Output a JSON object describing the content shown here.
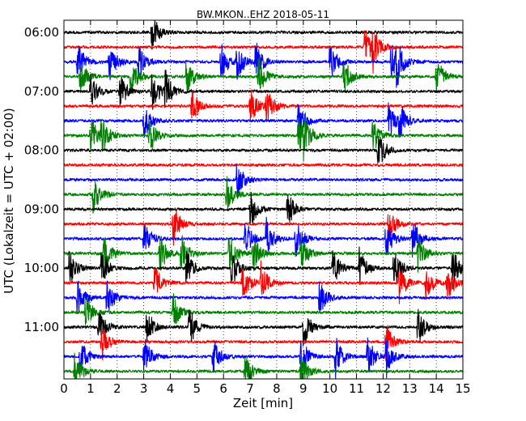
{
  "chart_data": {
    "type": "line",
    "title": "BW.MKON..EHZ 2018-05-11",
    "xlabel": "Zeit  [min]",
    "ylabel": "UTC (Lokalzeit = UTC + 02:00)",
    "xlim": [
      0,
      15
    ],
    "x_ticks": [
      "0",
      "1",
      "2",
      "3",
      "4",
      "5",
      "6",
      "7",
      "8",
      "9",
      "10",
      "11",
      "12",
      "13",
      "14",
      "15"
    ],
    "y_ticks": [
      "06:00",
      "07:00",
      "08:00",
      "09:00",
      "10:00",
      "11:00"
    ],
    "row_interval_min": 15,
    "start_time": "06:00",
    "grid": true,
    "trace_colors": [
      "#000000",
      "#ff0000",
      "#0000ff",
      "#008000"
    ],
    "series": [
      {
        "row": "06:00",
        "color": "black",
        "events_min": [
          3.3
        ]
      },
      {
        "row": "06:15",
        "color": "red",
        "events_min": [
          11.3,
          11.6
        ]
      },
      {
        "row": "06:30",
        "color": "blue",
        "events_min": [
          0.5,
          1.7,
          2.8,
          5.9,
          6.5,
          7.2,
          10.0,
          12.3,
          12.5
        ]
      },
      {
        "row": "06:45",
        "color": "green",
        "events_min": [
          0.6,
          2.5,
          4.6,
          7.3,
          10.5,
          14.0
        ]
      },
      {
        "row": "07:00",
        "color": "black",
        "events_min": [
          1.0,
          2.1,
          3.3,
          3.8
        ]
      },
      {
        "row": "07:15",
        "color": "red",
        "events_min": [
          4.8,
          7.0,
          7.6
        ]
      },
      {
        "row": "07:30",
        "color": "blue",
        "events_min": [
          3.0,
          8.8,
          12.2,
          12.6
        ]
      },
      {
        "row": "07:45",
        "color": "green",
        "events_min": [
          1.0,
          1.4,
          3.2,
          8.8,
          9.0,
          11.6
        ]
      },
      {
        "row": "08:00",
        "color": "black",
        "events_min": [
          11.8
        ]
      },
      {
        "row": "08:15",
        "color": "red",
        "events_min": []
      },
      {
        "row": "08:30",
        "color": "blue",
        "events_min": [
          6.5
        ]
      },
      {
        "row": "08:45",
        "color": "green",
        "events_min": [
          1.1,
          6.1
        ]
      },
      {
        "row": "09:00",
        "color": "black",
        "events_min": [
          7.0,
          8.4
        ]
      },
      {
        "row": "09:15",
        "color": "red",
        "events_min": [
          4.1,
          12.2
        ]
      },
      {
        "row": "09:30",
        "color": "blue",
        "events_min": [
          3.0,
          6.8,
          7.6,
          8.7,
          12.1,
          13.1
        ]
      },
      {
        "row": "09:45",
        "color": "green",
        "events_min": [
          1.5,
          3.6,
          4.4,
          6.2,
          7.1,
          8.9,
          13.3
        ]
      },
      {
        "row": "10:00",
        "color": "black",
        "events_min": [
          0.2,
          1.4,
          4.6,
          6.3,
          10.1,
          11.1,
          12.4,
          14.6
        ]
      },
      {
        "row": "10:15",
        "color": "red",
        "events_min": [
          3.4,
          6.7,
          7.4,
          12.6,
          13.6,
          14.4
        ]
      },
      {
        "row": "10:30",
        "color": "blue",
        "events_min": [
          0.5,
          1.6,
          9.6
        ]
      },
      {
        "row": "10:45",
        "color": "green",
        "events_min": [
          0.8,
          4.1
        ]
      },
      {
        "row": "11:00",
        "color": "black",
        "events_min": [
          1.3,
          3.1,
          4.7,
          9.0,
          13.3
        ]
      },
      {
        "row": "11:15",
        "color": "red",
        "events_min": [
          1.4,
          12.1
        ]
      },
      {
        "row": "11:30",
        "color": "blue",
        "events_min": [
          0.6,
          3.0,
          5.6,
          8.9,
          10.2,
          11.4,
          12.1
        ]
      },
      {
        "row": "11:45",
        "color": "green",
        "events_min": [
          0.4,
          6.8,
          8.9
        ]
      }
    ]
  }
}
